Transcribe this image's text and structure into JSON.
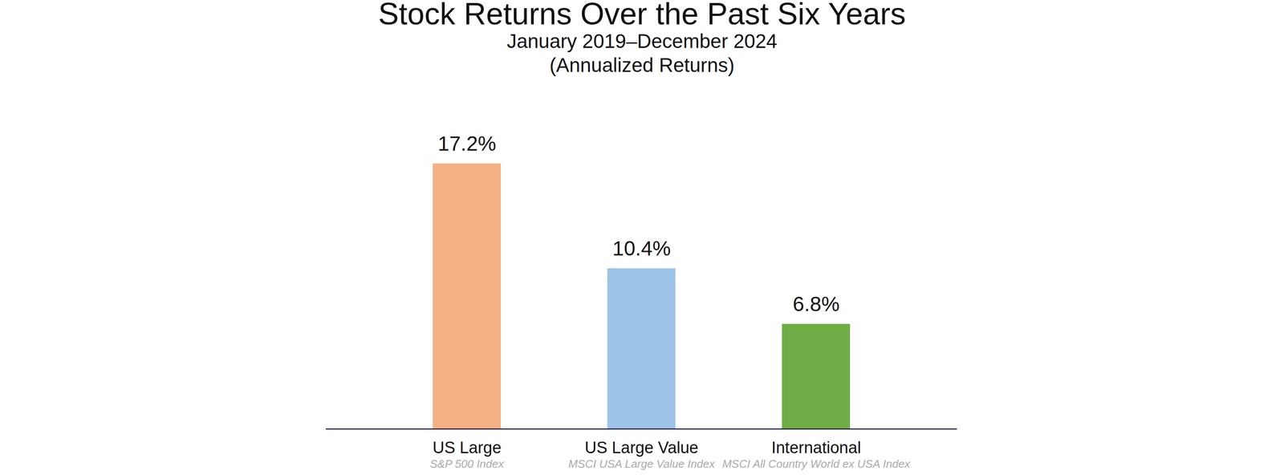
{
  "chart_data": {
    "type": "bar",
    "title": "Stock Returns Over the Past Six Years",
    "subtitle": [
      "January 2019–December 2024",
      "(Annualized Returns)"
    ],
    "categories": [
      "US Large",
      "US Large Value",
      "International"
    ],
    "subcategories": [
      "S&P 500 Index",
      "MSCI USA Large Value Index",
      "MSCI All Country World ex USA Index"
    ],
    "values": [
      17.2,
      10.4,
      6.8
    ],
    "value_labels": [
      "17.2%",
      "10.4%",
      "6.8%"
    ],
    "colors": [
      "#f4b084",
      "#9dc3e6",
      "#70ad47"
    ],
    "ylim": [
      0,
      18
    ],
    "data_labels": true,
    "tick_labels": "x",
    "grid": false
  }
}
